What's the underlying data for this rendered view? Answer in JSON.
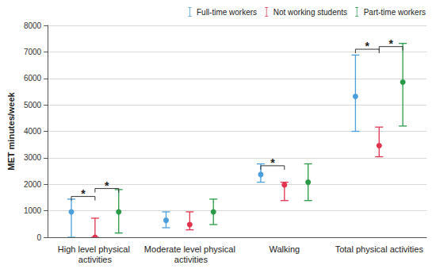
{
  "chart_data": {
    "type": "errorbar",
    "y_label": "MET minutes/week",
    "categories": [
      "High level physical activities",
      "Moderate level physical activities",
      "Walking",
      "Total physical activities"
    ],
    "ylim": [
      0,
      8000
    ],
    "yticks": [
      0,
      1000,
      2000,
      3000,
      4000,
      5000,
      6000,
      7000,
      8000
    ],
    "grid": true,
    "legend": "top right",
    "series": [
      {
        "name": "Full-time workers",
        "color": "#4a9fdc",
        "marker": "circle",
        "values": [
          960,
          640,
          2370,
          5320
        ],
        "lower": [
          0,
          360,
          2080,
          4000
        ],
        "upper": [
          1440,
          960,
          2770,
          6880
        ]
      },
      {
        "name": "Not working students",
        "color": "#e2344f",
        "marker": "circle",
        "values": [
          0,
          480,
          1980,
          3460
        ],
        "lower": [
          0,
          280,
          1386,
          3040
        ],
        "upper": [
          720,
          960,
          2079,
          4160
        ]
      },
      {
        "name": "Part-time workers",
        "color": "#2a9a48",
        "marker": "circle",
        "values": [
          960,
          960,
          2079,
          5860
        ],
        "lower": [
          160,
          480,
          1386,
          4200
        ],
        "upper": [
          1800,
          1440,
          2772,
          7320
        ]
      }
    ],
    "annotations": [
      {
        "category": "High level physical activities",
        "between": [
          "Full-time workers",
          "Not working students"
        ],
        "y": 1540,
        "text": "*"
      },
      {
        "category": "High level physical activities",
        "between": [
          "Not working students",
          "Part-time workers"
        ],
        "y": 1840,
        "text": "*"
      },
      {
        "category": "Walking",
        "between": [
          "Full-time workers",
          "Not working students"
        ],
        "y": 2700,
        "text": "*"
      },
      {
        "category": "Total physical activities",
        "between": [
          "Full-time workers",
          "Not working students"
        ],
        "y": 7100,
        "text": "*"
      },
      {
        "category": "Total physical activities",
        "between": [
          "Not working students",
          "Part-time workers"
        ],
        "y": 7200,
        "text": "*"
      }
    ]
  }
}
